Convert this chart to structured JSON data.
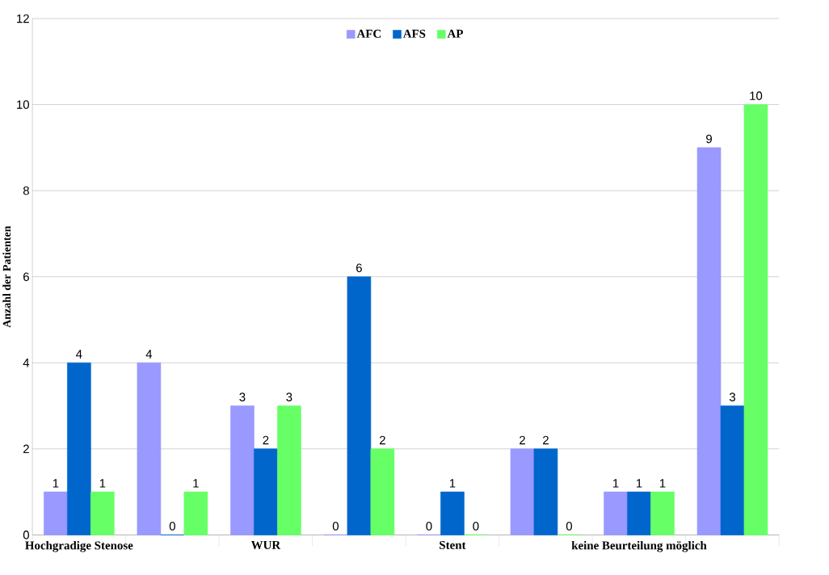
{
  "chart_data": {
    "type": "bar",
    "ylabel": "Anzahl der Patienten",
    "categories": [
      "Hochgradige Stenose",
      null,
      "WUR",
      null,
      "Stent",
      null,
      "keine Beurteilung möglich",
      null
    ],
    "series": [
      {
        "name": "AFC",
        "color": "#9999ff",
        "values": [
          1,
          4,
          3,
          0,
          0,
          2,
          1,
          9
        ]
      },
      {
        "name": "AFS",
        "color": "#0066cc",
        "values": [
          4,
          0,
          2,
          6,
          1,
          2,
          1,
          3
        ]
      },
      {
        "name": "AP",
        "color": "#66ff66",
        "values": [
          1,
          1,
          3,
          2,
          0,
          0,
          1,
          10
        ]
      }
    ],
    "ylim": [
      0,
      12
    ],
    "yticks": [
      0,
      2,
      4,
      6,
      8,
      10,
      12
    ],
    "grid": "y",
    "legend": "top",
    "data_labels": true
  }
}
